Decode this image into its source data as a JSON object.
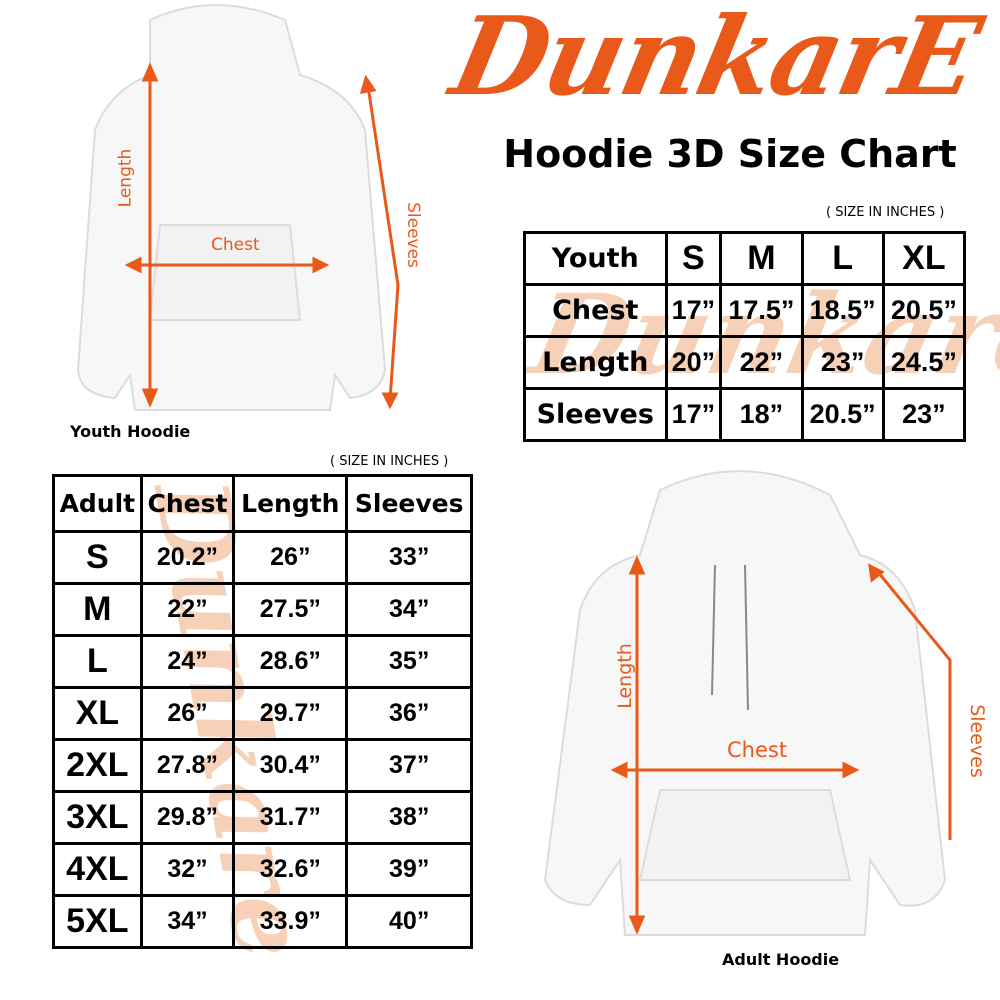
{
  "brand": {
    "logo_text": "DunkarE",
    "color": "#e8591a"
  },
  "title": "Hoodie 3D Size Chart",
  "youth": {
    "unit_note": "( SIZE IN INCHES )",
    "image_label": "Youth Hoodie",
    "measure_labels": {
      "length": "Length",
      "chest": "Chest",
      "sleeves": "Sleeves"
    },
    "header": [
      "Youth",
      "S",
      "M",
      "L",
      "XL"
    ],
    "rows": [
      {
        "label": "Chest",
        "values": [
          "17”",
          "17.5”",
          "18.5”",
          "20.5”"
        ]
      },
      {
        "label": "Length",
        "values": [
          "20”",
          "22”",
          "23”",
          "24.5”"
        ]
      },
      {
        "label": "Sleeves",
        "values": [
          "17”",
          "18”",
          "20.5”",
          "23”"
        ]
      }
    ]
  },
  "adult": {
    "unit_note": "( SIZE IN INCHES )",
    "image_label": "Adult Hoodie",
    "measure_labels": {
      "length": "Length",
      "chest": "Chest",
      "sleeves": "Sleeves"
    },
    "header": [
      "Adult",
      "Chest",
      "Length",
      "Sleeves"
    ],
    "rows": [
      {
        "size": "S",
        "values": [
          "20.2”",
          "26”",
          "33”"
        ]
      },
      {
        "size": "M",
        "values": [
          "22”",
          "27.5”",
          "34”"
        ]
      },
      {
        "size": "L",
        "values": [
          "24”",
          "28.6”",
          "35”"
        ]
      },
      {
        "size": "XL",
        "values": [
          "26”",
          "29.7”",
          "36”"
        ]
      },
      {
        "size": "2XL",
        "values": [
          "27.8”",
          "30.4”",
          "37”"
        ]
      },
      {
        "size": "3XL",
        "values": [
          "29.8”",
          "31.7”",
          "38”"
        ]
      },
      {
        "size": "4XL",
        "values": [
          "32”",
          "32.6”",
          "39”"
        ]
      },
      {
        "size": "5XL",
        "values": [
          "34”",
          "33.9”",
          "40”"
        ]
      }
    ]
  }
}
